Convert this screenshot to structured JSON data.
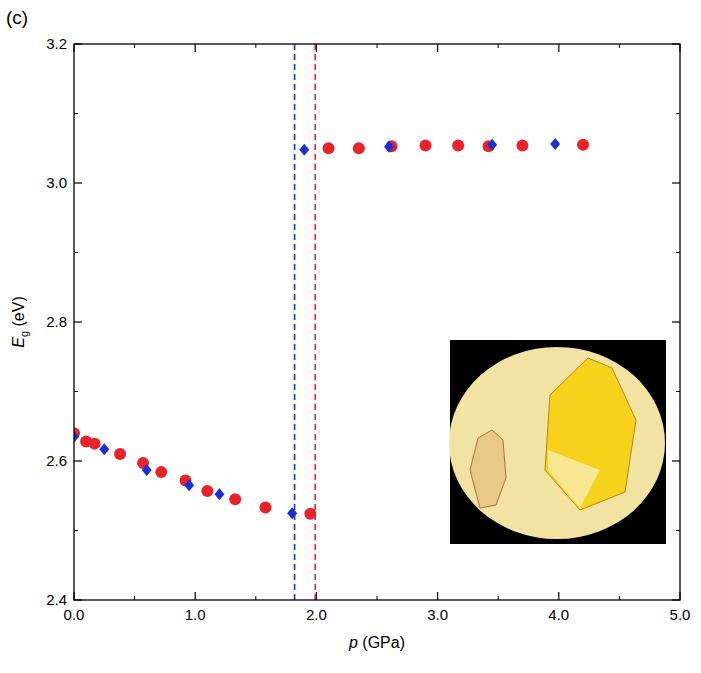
{
  "chart_data": {
    "type": "scatter",
    "panel_label": "(c)",
    "xlabel": [
      "p",
      " (GPa)"
    ],
    "ylabel": [
      "E",
      "g",
      " (eV)"
    ],
    "xlim": [
      0,
      5
    ],
    "ylim": [
      2.4,
      3.2
    ],
    "xticks": [
      {
        "value": 0,
        "label": "0.0"
      },
      {
        "value": 1,
        "label": "1.0"
      },
      {
        "value": 2,
        "label": "2.0"
      },
      {
        "value": 3,
        "label": "3.0"
      },
      {
        "value": 4,
        "label": "4.0"
      },
      {
        "value": 5,
        "label": "5.0"
      }
    ],
    "yticks": [
      2.4,
      2.6,
      2.8,
      {
        "value": 3,
        "label": "3.0"
      },
      3.2
    ],
    "grid": false,
    "series": [
      {
        "color": "#e8232a",
        "marker": "circle",
        "x": [
          0,
          0.1,
          0.17,
          0.38,
          0.57,
          0.72,
          0.92,
          1.1,
          1.33,
          1.58,
          1.95,
          2.1,
          2.35,
          2.62,
          2.9,
          3.17,
          3.42,
          3.7,
          4.2
        ],
        "values": [
          2.64,
          2.628,
          2.625,
          2.61,
          2.597,
          2.584,
          2.572,
          2.557,
          2.545,
          2.533,
          2.524,
          3.05,
          3.05,
          3.053,
          3.054,
          3.054,
          3.053,
          3.054,
          3.055
        ]
      },
      {
        "color": "#1a2fd6",
        "marker": "diamond",
        "x": [
          0,
          0.25,
          0.6,
          0.95,
          1.2,
          1.8,
          1.9,
          2.6,
          3.45,
          3.97
        ],
        "values": [
          2.635,
          2.617,
          2.587,
          2.565,
          2.552,
          2.525,
          3.048,
          3.052,
          3.055,
          3.056
        ]
      }
    ],
    "vlines": [
      {
        "x": 1.82,
        "color": "#1a2fd6",
        "line_style": "dashed"
      },
      {
        "x": 1.99,
        "color": "#e8232a",
        "line_style": "dashed"
      }
    ]
  }
}
